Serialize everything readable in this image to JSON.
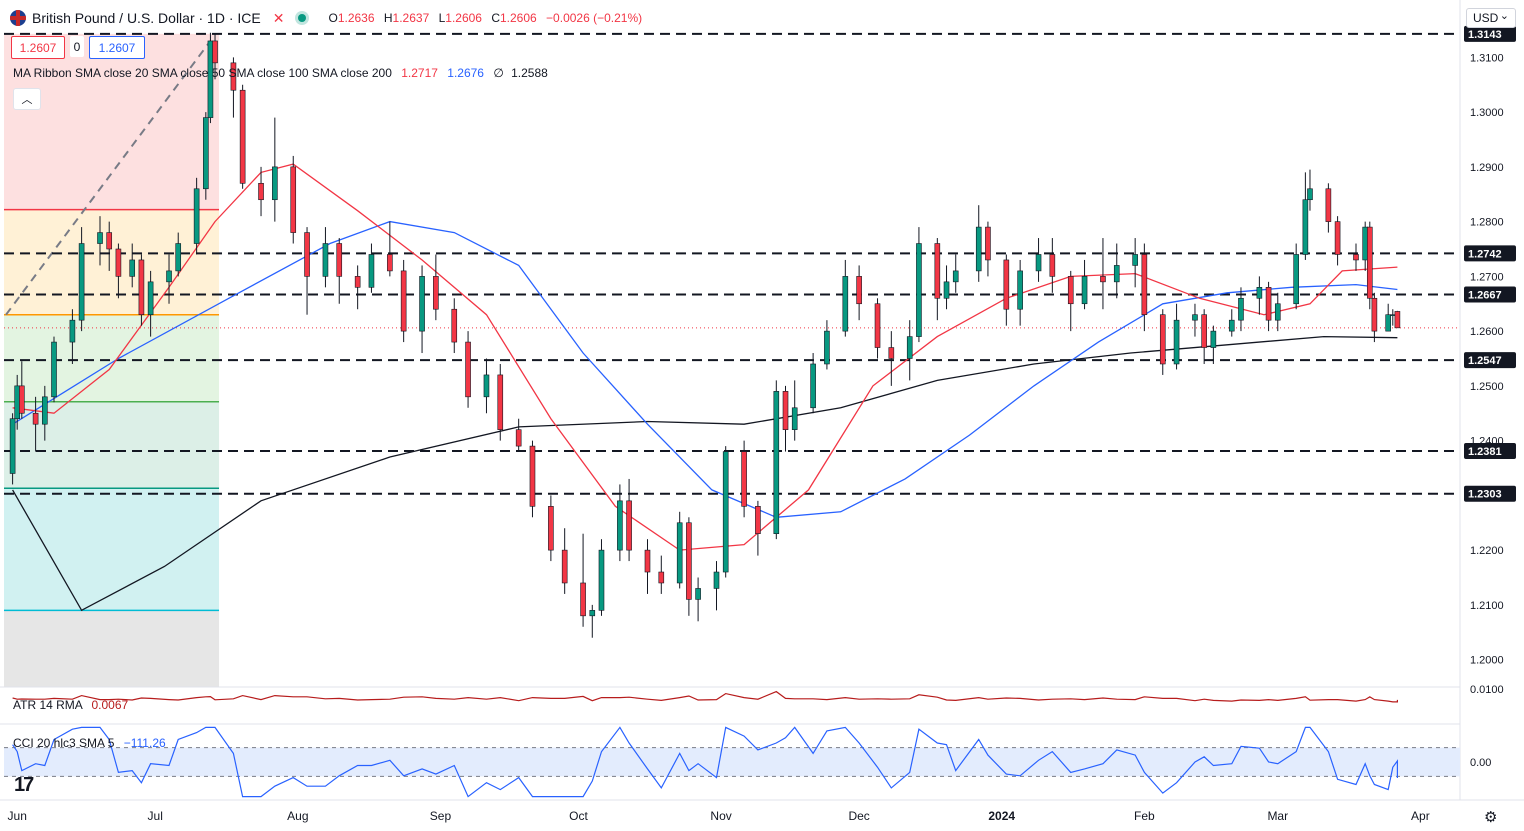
{
  "header": {
    "title": "British Pound / U.S. Dollar · 1D · ICE",
    "ohlc": [
      {
        "k": "O",
        "v": "1.2636"
      },
      {
        "k": "H",
        "v": "1.2637"
      },
      {
        "k": "L",
        "v": "1.2606"
      },
      {
        "k": "C",
        "v": "1.2606"
      }
    ],
    "change": "−0.0026 (−0.21%)"
  },
  "price_boxes": {
    "sell": "1.2607",
    "spread": "0",
    "buy": "1.2607"
  },
  "ma_legend": {
    "label": "MA Ribbon SMA close 20 SMA close 50 SMA close 100 SMA close 200",
    "v20": "1.2717",
    "v50": "1.2676",
    "v200": "1.2588"
  },
  "atr_legend": {
    "label": "ATR 14 RMA",
    "value": "0.0067"
  },
  "cci_legend": {
    "label": "CCI 20 hlc3 SMA 5",
    "value": "−111.26"
  },
  "currency": "USD",
  "colors": {
    "up": "#089981",
    "down": "#f23645",
    "sma20": "#f23645",
    "sma50": "#2962ff",
    "sma200": "#131722"
  },
  "icons": [
    "gbp-us-flag-icon",
    "close-x-icon",
    "market-status-dot-icon",
    "collapse-caret-icon",
    "tradingview-logo-icon",
    "settings-gear-icon"
  ],
  "chart_data": {
    "type": "candlestick",
    "symbol": "GBP/USD",
    "interval": "1D",
    "ylim": [
      1.195,
      1.315
    ],
    "yticks": [
      "1.3100",
      "1.3000",
      "1.2900",
      "1.2800",
      "1.2700",
      "1.2600",
      "1.2500",
      "1.2400",
      "1.2300",
      "1.2200",
      "1.2100",
      "1.2000"
    ],
    "xticks": [
      "Jun",
      "Jul",
      "Aug",
      "Sep",
      "Oct",
      "Nov",
      "Dec",
      "2024",
      "Feb",
      "Mar",
      "Apr"
    ],
    "horizontal_levels": [
      "1.3143",
      "1.2742",
      "1.2667",
      "1.2547",
      "1.2381",
      "1.2303"
    ],
    "last_price": 1.2606,
    "fibonacci_levels": [
      1.3143,
      1.2822,
      1.263,
      1.2471,
      1.2313,
      1.209
    ],
    "candles": [
      {
        "x": "2023-05-31",
        "o": 1.234,
        "h": 1.245,
        "l": 1.232,
        "c": 1.244
      },
      {
        "x": "2023-06-01",
        "o": 1.244,
        "h": 1.252,
        "l": 1.242,
        "c": 1.25
      },
      {
        "x": "2023-06-02",
        "o": 1.25,
        "h": 1.2545,
        "l": 1.244,
        "c": 1.245
      },
      {
        "x": "2023-06-05",
        "o": 1.245,
        "h": 1.248,
        "l": 1.238,
        "c": 1.243
      },
      {
        "x": "2023-06-07",
        "o": 1.243,
        "h": 1.25,
        "l": 1.24,
        "c": 1.248
      },
      {
        "x": "2023-06-09",
        "o": 1.248,
        "h": 1.259,
        "l": 1.247,
        "c": 1.258
      },
      {
        "x": "2023-06-13",
        "o": 1.258,
        "h": 1.264,
        "l": 1.254,
        "c": 1.262
      },
      {
        "x": "2023-06-15",
        "o": 1.262,
        "h": 1.279,
        "l": 1.26,
        "c": 1.276
      },
      {
        "x": "2023-06-19",
        "o": 1.276,
        "h": 1.281,
        "l": 1.272,
        "c": 1.278
      },
      {
        "x": "2023-06-21",
        "o": 1.278,
        "h": 1.28,
        "l": 1.271,
        "c": 1.275
      },
      {
        "x": "2023-06-23",
        "o": 1.275,
        "h": 1.276,
        "l": 1.266,
        "c": 1.27
      },
      {
        "x": "2023-06-26",
        "o": 1.27,
        "h": 1.276,
        "l": 1.268,
        "c": 1.273
      },
      {
        "x": "2023-06-28",
        "o": 1.273,
        "h": 1.274,
        "l": 1.261,
        "c": 1.263
      },
      {
        "x": "2023-06-30",
        "o": 1.263,
        "h": 1.271,
        "l": 1.259,
        "c": 1.269
      },
      {
        "x": "2023-07-04",
        "o": 1.269,
        "h": 1.274,
        "l": 1.265,
        "c": 1.271
      },
      {
        "x": "2023-07-06",
        "o": 1.271,
        "h": 1.278,
        "l": 1.27,
        "c": 1.276
      },
      {
        "x": "2023-07-10",
        "o": 1.276,
        "h": 1.288,
        "l": 1.274,
        "c": 1.286
      },
      {
        "x": "2023-07-12",
        "o": 1.286,
        "h": 1.3,
        "l": 1.284,
        "c": 1.299
      },
      {
        "x": "2023-07-13",
        "o": 1.299,
        "h": 1.3145,
        "l": 1.298,
        "c": 1.313
      },
      {
        "x": "2023-07-14",
        "o": 1.313,
        "h": 1.3143,
        "l": 1.306,
        "c": 1.309
      },
      {
        "x": "2023-07-18",
        "o": 1.309,
        "h": 1.31,
        "l": 1.299,
        "c": 1.304
      },
      {
        "x": "2023-07-20",
        "o": 1.304,
        "h": 1.305,
        "l": 1.286,
        "c": 1.287
      },
      {
        "x": "2023-07-24",
        "o": 1.287,
        "h": 1.29,
        "l": 1.281,
        "c": 1.284
      },
      {
        "x": "2023-07-27",
        "o": 1.284,
        "h": 1.299,
        "l": 1.28,
        "c": 1.29
      },
      {
        "x": "2023-07-31",
        "o": 1.29,
        "h": 1.292,
        "l": 1.276,
        "c": 1.278
      },
      {
        "x": "2023-08-03",
        "o": 1.278,
        "h": 1.279,
        "l": 1.263,
        "c": 1.27
      },
      {
        "x": "2023-08-07",
        "o": 1.27,
        "h": 1.279,
        "l": 1.268,
        "c": 1.276
      },
      {
        "x": "2023-08-10",
        "o": 1.276,
        "h": 1.277,
        "l": 1.265,
        "c": 1.27
      },
      {
        "x": "2023-08-14",
        "o": 1.27,
        "h": 1.272,
        "l": 1.264,
        "c": 1.268
      },
      {
        "x": "2023-08-17",
        "o": 1.268,
        "h": 1.276,
        "l": 1.267,
        "c": 1.274
      },
      {
        "x": "2023-08-21",
        "o": 1.274,
        "h": 1.28,
        "l": 1.27,
        "c": 1.271
      },
      {
        "x": "2023-08-24",
        "o": 1.271,
        "h": 1.273,
        "l": 1.258,
        "c": 1.26
      },
      {
        "x": "2023-08-28",
        "o": 1.26,
        "h": 1.272,
        "l": 1.256,
        "c": 1.27
      },
      {
        "x": "2023-08-31",
        "o": 1.27,
        "h": 1.274,
        "l": 1.262,
        "c": 1.264
      },
      {
        "x": "2023-09-04",
        "o": 1.264,
        "h": 1.266,
        "l": 1.256,
        "c": 1.258
      },
      {
        "x": "2023-09-07",
        "o": 1.258,
        "h": 1.26,
        "l": 1.246,
        "c": 1.248
      },
      {
        "x": "2023-09-11",
        "o": 1.248,
        "h": 1.255,
        "l": 1.245,
        "c": 1.252
      },
      {
        "x": "2023-09-14",
        "o": 1.252,
        "h": 1.254,
        "l": 1.24,
        "c": 1.242
      },
      {
        "x": "2023-09-18",
        "o": 1.242,
        "h": 1.244,
        "l": 1.238,
        "c": 1.239
      },
      {
        "x": "2023-09-21",
        "o": 1.239,
        "h": 1.24,
        "l": 1.226,
        "c": 1.228
      },
      {
        "x": "2023-09-25",
        "o": 1.228,
        "h": 1.23,
        "l": 1.218,
        "c": 1.22
      },
      {
        "x": "2023-09-28",
        "o": 1.22,
        "h": 1.224,
        "l": 1.212,
        "c": 1.214
      },
      {
        "x": "2023-10-02",
        "o": 1.214,
        "h": 1.223,
        "l": 1.206,
        "c": 1.208
      },
      {
        "x": "2023-10-04",
        "o": 1.208,
        "h": 1.21,
        "l": 1.204,
        "c": 1.209
      },
      {
        "x": "2023-10-06",
        "o": 1.209,
        "h": 1.222,
        "l": 1.208,
        "c": 1.22
      },
      {
        "x": "2023-10-10",
        "o": 1.22,
        "h": 1.232,
        "l": 1.218,
        "c": 1.229
      },
      {
        "x": "2023-10-12",
        "o": 1.229,
        "h": 1.233,
        "l": 1.218,
        "c": 1.22
      },
      {
        "x": "2023-10-16",
        "o": 1.22,
        "h": 1.222,
        "l": 1.212,
        "c": 1.216
      },
      {
        "x": "2023-10-19",
        "o": 1.216,
        "h": 1.219,
        "l": 1.212,
        "c": 1.214
      },
      {
        "x": "2023-10-23",
        "o": 1.214,
        "h": 1.227,
        "l": 1.213,
        "c": 1.225
      },
      {
        "x": "2023-10-25",
        "o": 1.225,
        "h": 1.226,
        "l": 1.208,
        "c": 1.211
      },
      {
        "x": "2023-10-27",
        "o": 1.211,
        "h": 1.215,
        "l": 1.207,
        "c": 1.213
      },
      {
        "x": "2023-10-31",
        "o": 1.213,
        "h": 1.218,
        "l": 1.209,
        "c": 1.216
      },
      {
        "x": "2023-11-02",
        "o": 1.216,
        "h": 1.239,
        "l": 1.215,
        "c": 1.238
      },
      {
        "x": "2023-11-06",
        "o": 1.238,
        "h": 1.24,
        "l": 1.226,
        "c": 1.228
      },
      {
        "x": "2023-11-09",
        "o": 1.228,
        "h": 1.229,
        "l": 1.219,
        "c": 1.223
      },
      {
        "x": "2023-11-13",
        "o": 1.223,
        "h": 1.251,
        "l": 1.222,
        "c": 1.249
      },
      {
        "x": "2023-11-15",
        "o": 1.249,
        "h": 1.25,
        "l": 1.238,
        "c": 1.242
      },
      {
        "x": "2023-11-17",
        "o": 1.242,
        "h": 1.251,
        "l": 1.24,
        "c": 1.246
      },
      {
        "x": "2023-11-21",
        "o": 1.246,
        "h": 1.256,
        "l": 1.245,
        "c": 1.254
      },
      {
        "x": "2023-11-24",
        "o": 1.254,
        "h": 1.262,
        "l": 1.253,
        "c": 1.26
      },
      {
        "x": "2023-11-28",
        "o": 1.26,
        "h": 1.273,
        "l": 1.259,
        "c": 1.27
      },
      {
        "x": "2023-12-01",
        "o": 1.27,
        "h": 1.272,
        "l": 1.262,
        "c": 1.265
      },
      {
        "x": "2023-12-05",
        "o": 1.265,
        "h": 1.266,
        "l": 1.255,
        "c": 1.257
      },
      {
        "x": "2023-12-08",
        "o": 1.257,
        "h": 1.26,
        "l": 1.25,
        "c": 1.255
      },
      {
        "x": "2023-12-12",
        "o": 1.255,
        "h": 1.262,
        "l": 1.251,
        "c": 1.259
      },
      {
        "x": "2023-12-14",
        "o": 1.259,
        "h": 1.279,
        "l": 1.258,
        "c": 1.276
      },
      {
        "x": "2023-12-18",
        "o": 1.276,
        "h": 1.277,
        "l": 1.262,
        "c": 1.266
      },
      {
        "x": "2023-12-20",
        "o": 1.266,
        "h": 1.272,
        "l": 1.264,
        "c": 1.269
      },
      {
        "x": "2023-12-22",
        "o": 1.269,
        "h": 1.274,
        "l": 1.267,
        "c": 1.271
      },
      {
        "x": "2023-12-27",
        "o": 1.271,
        "h": 1.283,
        "l": 1.269,
        "c": 1.279
      },
      {
        "x": "2023-12-29",
        "o": 1.279,
        "h": 1.28,
        "l": 1.27,
        "c": 1.273
      },
      {
        "x": "2024-01-02",
        "o": 1.273,
        "h": 1.274,
        "l": 1.261,
        "c": 1.264
      },
      {
        "x": "2024-01-05",
        "o": 1.264,
        "h": 1.273,
        "l": 1.261,
        "c": 1.271
      },
      {
        "x": "2024-01-09",
        "o": 1.271,
        "h": 1.277,
        "l": 1.269,
        "c": 1.274
      },
      {
        "x": "2024-01-12",
        "o": 1.274,
        "h": 1.277,
        "l": 1.267,
        "c": 1.27
      },
      {
        "x": "2024-01-16",
        "o": 1.27,
        "h": 1.271,
        "l": 1.26,
        "c": 1.265
      },
      {
        "x": "2024-01-19",
        "o": 1.265,
        "h": 1.273,
        "l": 1.264,
        "c": 1.27
      },
      {
        "x": "2024-01-23",
        "o": 1.27,
        "h": 1.277,
        "l": 1.264,
        "c": 1.269
      },
      {
        "x": "2024-01-26",
        "o": 1.269,
        "h": 1.276,
        "l": 1.266,
        "c": 1.272
      },
      {
        "x": "2024-01-30",
        "o": 1.272,
        "h": 1.277,
        "l": 1.268,
        "c": 1.274
      },
      {
        "x": "2024-02-01",
        "o": 1.274,
        "h": 1.276,
        "l": 1.26,
        "c": 1.263
      },
      {
        "x": "2024-02-05",
        "o": 1.263,
        "h": 1.264,
        "l": 1.252,
        "c": 1.254
      },
      {
        "x": "2024-02-08",
        "o": 1.254,
        "h": 1.265,
        "l": 1.253,
        "c": 1.262
      },
      {
        "x": "2024-02-12",
        "o": 1.262,
        "h": 1.265,
        "l": 1.259,
        "c": 1.263
      },
      {
        "x": "2024-02-14",
        "o": 1.263,
        "h": 1.264,
        "l": 1.254,
        "c": 1.257
      },
      {
        "x": "2024-02-16",
        "o": 1.257,
        "h": 1.261,
        "l": 1.254,
        "c": 1.26
      },
      {
        "x": "2024-02-20",
        "o": 1.26,
        "h": 1.264,
        "l": 1.259,
        "c": 1.262
      },
      {
        "x": "2024-02-22",
        "o": 1.262,
        "h": 1.268,
        "l": 1.26,
        "c": 1.266
      },
      {
        "x": "2024-02-26",
        "o": 1.266,
        "h": 1.27,
        "l": 1.263,
        "c": 1.268
      },
      {
        "x": "2024-02-28",
        "o": 1.268,
        "h": 1.269,
        "l": 1.26,
        "c": 1.262
      },
      {
        "x": "2024-03-01",
        "o": 1.262,
        "h": 1.267,
        "l": 1.26,
        "c": 1.265
      },
      {
        "x": "2024-03-05",
        "o": 1.265,
        "h": 1.276,
        "l": 1.264,
        "c": 1.274
      },
      {
        "x": "2024-03-07",
        "o": 1.274,
        "h": 1.289,
        "l": 1.273,
        "c": 1.284
      },
      {
        "x": "2024-03-08",
        "o": 1.284,
        "h": 1.2895,
        "l": 1.282,
        "c": 1.286
      },
      {
        "x": "2024-03-12",
        "o": 1.286,
        "h": 1.287,
        "l": 1.278,
        "c": 1.28
      },
      {
        "x": "2024-03-14",
        "o": 1.28,
        "h": 1.281,
        "l": 1.272,
        "c": 1.274
      },
      {
        "x": "2024-03-18",
        "o": 1.274,
        "h": 1.276,
        "l": 1.271,
        "c": 1.273
      },
      {
        "x": "2024-03-20",
        "o": 1.273,
        "h": 1.28,
        "l": 1.271,
        "c": 1.279
      },
      {
        "x": "2024-03-21",
        "o": 1.279,
        "h": 1.28,
        "l": 1.264,
        "c": 1.266
      },
      {
        "x": "2024-03-22",
        "o": 1.266,
        "h": 1.267,
        "l": 1.258,
        "c": 1.26
      },
      {
        "x": "2024-03-25",
        "o": 1.26,
        "h": 1.265,
        "l": 1.26,
        "c": 1.263
      },
      {
        "x": "2024-03-26",
        "o": 1.263,
        "h": 1.264,
        "l": 1.261,
        "c": 1.263
      },
      {
        "x": "2024-03-27",
        "o": 1.2636,
        "h": 1.2637,
        "l": 1.2606,
        "c": 1.2606
      }
    ],
    "sma20": [
      [
        "2023-05-31",
        1.246
      ],
      [
        "2023-06-09",
        1.245
      ],
      [
        "2023-06-21",
        1.253
      ],
      [
        "2023-07-04",
        1.268
      ],
      [
        "2023-07-14",
        1.28
      ],
      [
        "2023-07-24",
        1.289
      ],
      [
        "2023-07-31",
        1.2905
      ],
      [
        "2023-08-14",
        1.282
      ],
      [
        "2023-08-28",
        1.273
      ],
      [
        "2023-09-11",
        1.263
      ],
      [
        "2023-09-25",
        1.244
      ],
      [
        "2023-10-09",
        1.228
      ],
      [
        "2023-10-23",
        1.22
      ],
      [
        "2023-11-06",
        1.221
      ],
      [
        "2023-11-20",
        1.231
      ],
      [
        "2023-12-04",
        1.25
      ],
      [
        "2023-12-18",
        1.259
      ],
      [
        "2024-01-02",
        1.266
      ],
      [
        "2024-01-16",
        1.27
      ],
      [
        "2024-01-30",
        1.2705
      ],
      [
        "2024-02-13",
        1.266
      ],
      [
        "2024-02-27",
        1.263
      ],
      [
        "2024-03-08",
        1.265
      ],
      [
        "2024-03-15",
        1.271
      ],
      [
        "2024-03-27",
        1.2717
      ]
    ],
    "sma50": [
      [
        "2023-05-31",
        1.243
      ],
      [
        "2023-06-23",
        1.255
      ],
      [
        "2023-07-17",
        1.266
      ],
      [
        "2023-08-08",
        1.276
      ],
      [
        "2023-08-21",
        1.28
      ],
      [
        "2023-09-04",
        1.278
      ],
      [
        "2023-09-18",
        1.272
      ],
      [
        "2023-10-02",
        1.256
      ],
      [
        "2023-10-16",
        1.243
      ],
      [
        "2023-10-30",
        1.231
      ],
      [
        "2023-11-13",
        1.226
      ],
      [
        "2023-11-27",
        1.227
      ],
      [
        "2023-12-11",
        1.233
      ],
      [
        "2023-12-25",
        1.241
      ],
      [
        "2024-01-08",
        1.25
      ],
      [
        "2024-01-22",
        1.258
      ],
      [
        "2024-02-05",
        1.265
      ],
      [
        "2024-02-19",
        1.267
      ],
      [
        "2024-03-04",
        1.268
      ],
      [
        "2024-03-18",
        1.2685
      ],
      [
        "2024-03-27",
        1.2676
      ]
    ],
    "sma200": [
      [
        "2023-05-31",
        1.231
      ],
      [
        "2023-06-15",
        1.209
      ],
      [
        "2023-07-03",
        1.217
      ],
      [
        "2023-07-24",
        1.229
      ],
      [
        "2023-08-21",
        1.237
      ],
      [
        "2023-09-18",
        1.2425
      ],
      [
        "2023-10-16",
        1.2435
      ],
      [
        "2023-11-06",
        1.243
      ],
      [
        "2023-11-27",
        1.246
      ],
      [
        "2023-12-18",
        1.251
      ],
      [
        "2024-01-08",
        1.254
      ],
      [
        "2024-01-29",
        1.256
      ],
      [
        "2024-02-19",
        1.2575
      ],
      [
        "2024-03-11",
        1.259
      ],
      [
        "2024-03-27",
        1.2588
      ]
    ],
    "atr": {
      "ylim": [
        0.0,
        0.01
      ],
      "ticks": [
        "0.0100"
      ],
      "last": 0.0067
    },
    "cci": {
      "ylim": [
        -250,
        250
      ],
      "ticks": [
        "0.00"
      ],
      "bands": [
        100,
        -100
      ],
      "last": -111.26
    }
  }
}
